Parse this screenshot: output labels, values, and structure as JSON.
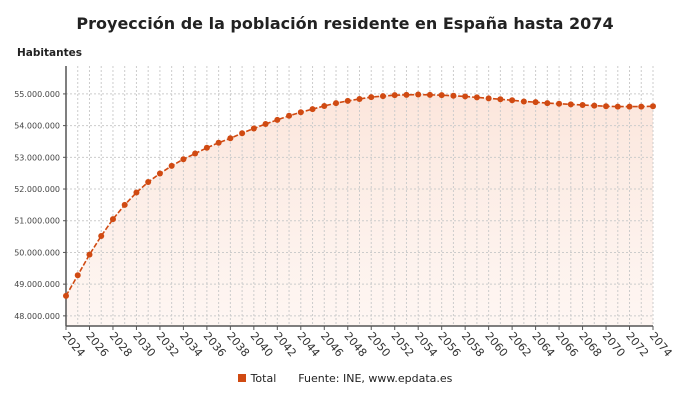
{
  "chart_data": {
    "type": "line",
    "title": "Proyección de la población residente en España hasta 2074",
    "ylabel": "Habitantes",
    "xlabel": "",
    "x": [
      2024,
      2025,
      2026,
      2027,
      2028,
      2029,
      2030,
      2031,
      2032,
      2033,
      2034,
      2035,
      2036,
      2037,
      2038,
      2039,
      2040,
      2041,
      2042,
      2043,
      2044,
      2045,
      2046,
      2047,
      2048,
      2049,
      2050,
      2051,
      2052,
      2053,
      2054,
      2055,
      2056,
      2057,
      2058,
      2059,
      2060,
      2061,
      2062,
      2063,
      2064,
      2065,
      2066,
      2067,
      2068,
      2069,
      2070,
      2071,
      2072,
      2073,
      2074
    ],
    "series": [
      {
        "name": "Total",
        "color": "#d04a12",
        "values": [
          48630000,
          49280000,
          49930000,
          50520000,
          51050000,
          51500000,
          51890000,
          52220000,
          52490000,
          52730000,
          52940000,
          53120000,
          53300000,
          53460000,
          53600000,
          53760000,
          53910000,
          54050000,
          54180000,
          54310000,
          54420000,
          54520000,
          54620000,
          54710000,
          54780000,
          54840000,
          54900000,
          54930000,
          54960000,
          54970000,
          54980000,
          54970000,
          54960000,
          54940000,
          54920000,
          54890000,
          54860000,
          54830000,
          54800000,
          54760000,
          54740000,
          54710000,
          54690000,
          54670000,
          54650000,
          54630000,
          54610000,
          54600000,
          54600000,
          54600000,
          54610000
        ]
      }
    ],
    "x_tick_labels": [
      "2024",
      "2026",
      "2028",
      "2030",
      "2032",
      "2034",
      "2036",
      "2038",
      "2040",
      "2042",
      "2044",
      "2046",
      "2048",
      "2050",
      "2052",
      "2054",
      "2056",
      "2058",
      "2060",
      "2062",
      "2064",
      "2066",
      "2068",
      "2070",
      "2072",
      "2074"
    ],
    "y_ticks": [
      48000000,
      49000000,
      50000000,
      51000000,
      52000000,
      53000000,
      54000000,
      55000000
    ],
    "y_tick_labels": [
      "48.000.000",
      "49.000.000",
      "50.000.000",
      "51.000.000",
      "52.000.000",
      "53.000.000",
      "54.000.000",
      "55.000.000"
    ],
    "ylim": [
      47680000,
      55880000
    ],
    "xlim": [
      2024,
      2074
    ],
    "grid": true,
    "legend": "bottom"
  },
  "legend": {
    "label": "Total",
    "source": "Fuente: INE, www.epdata.es"
  }
}
